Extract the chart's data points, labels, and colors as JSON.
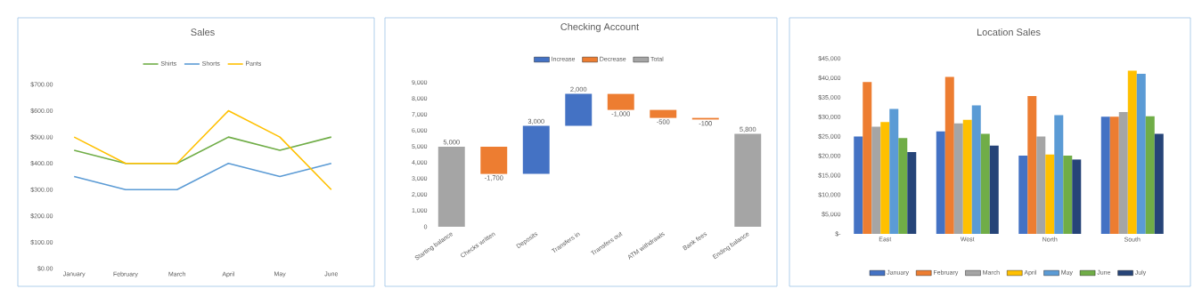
{
  "chart_data": [
    {
      "type": "line",
      "title": "Sales",
      "categories": [
        "January",
        "February",
        "March",
        "April",
        "May",
        "June"
      ],
      "series": [
        {
          "name": "Shirts",
          "color": "#70ad47",
          "values": [
            450,
            400,
            400,
            500,
            450,
            500
          ]
        },
        {
          "name": "Shorts",
          "color": "#5b9bd5",
          "values": [
            350,
            300,
            300,
            400,
            350,
            400
          ]
        },
        {
          "name": "Pants",
          "color": "#ffc000",
          "values": [
            500,
            400,
            400,
            600,
            500,
            300
          ]
        }
      ],
      "ylim": [
        0,
        700
      ],
      "yticks": [
        {
          "value": 0,
          "label": "$0.00"
        },
        {
          "value": 100,
          "label": "$100.00"
        },
        {
          "value": 200,
          "label": "$200.00"
        },
        {
          "value": 300,
          "label": "$300.00"
        },
        {
          "value": 400,
          "label": "$400.00"
        },
        {
          "value": 500,
          "label": "$500.00"
        },
        {
          "value": 600,
          "label": "$600.00"
        },
        {
          "value": 700,
          "label": "$700.00"
        }
      ],
      "legend": "top"
    },
    {
      "type": "bar",
      "title": "Checking Account",
      "categories": [
        "Starting balance",
        "Checks written",
        "Deposits",
        "Transfers in",
        "Transfers out",
        "ATM withdrawls",
        "Bank fees",
        "Ending balance"
      ],
      "series": [
        {
          "name": "Increase",
          "color": "#4472c4",
          "values": [
            null,
            null,
            3000,
            2000,
            null,
            null,
            null,
            null
          ],
          "value_labels": [
            null,
            null,
            "3,000",
            "2,000",
            null,
            null,
            null,
            null
          ],
          "base": [
            null,
            null,
            3300,
            6300,
            null,
            null,
            null,
            null
          ]
        },
        {
          "name": "Decrease",
          "color": "#ed7d31",
          "values": [
            null,
            -1700,
            null,
            null,
            -1000,
            -500,
            -100,
            null
          ],
          "value_labels": [
            null,
            "-1,700",
            null,
            null,
            "-1,000",
            "-500",
            "-100",
            null
          ],
          "base": [
            null,
            5000,
            null,
            null,
            8300,
            7300,
            6800,
            null
          ]
        },
        {
          "name": "Total",
          "color": "#a5a5a5",
          "values": [
            5000,
            null,
            null,
            null,
            null,
            null,
            null,
            5800
          ],
          "value_labels": [
            "5,000",
            null,
            null,
            null,
            null,
            null,
            null,
            "5,800"
          ],
          "base": [
            0,
            null,
            null,
            null,
            null,
            null,
            null,
            0
          ]
        }
      ],
      "ylim": [
        0,
        9000
      ],
      "yticks": [
        0,
        {
          "value": 1000,
          "label": "1,000"
        },
        {
          "value": 2000,
          "label": "2,000"
        },
        {
          "value": 3000,
          "label": "3,000"
        },
        {
          "value": 4000,
          "label": "4,000"
        },
        {
          "value": 5000,
          "label": "5,000"
        },
        {
          "value": 6000,
          "label": "6,000"
        },
        {
          "value": 7000,
          "label": "7,000"
        },
        {
          "value": 8000,
          "label": "8,000"
        },
        {
          "value": 9000,
          "label": "9,000"
        }
      ],
      "legend": "top"
    },
    {
      "type": "bar",
      "title": "Location Sales",
      "categories": [
        "East",
        "West",
        "North",
        "South"
      ],
      "series": [
        {
          "name": "January",
          "color": "#4472c4",
          "values": [
            25000,
            26300,
            20100,
            30100
          ]
        },
        {
          "name": "February",
          "color": "#ed7d31",
          "values": [
            39000,
            40300,
            35400,
            30100
          ]
        },
        {
          "name": "March",
          "color": "#a5a5a5",
          "values": [
            27500,
            28400,
            25000,
            31300
          ]
        },
        {
          "name": "April",
          "color": "#ffc000",
          "values": [
            28700,
            29300,
            20400,
            41900
          ]
        },
        {
          "name": "May",
          "color": "#5b9bd5",
          "values": [
            32100,
            33000,
            30500,
            41100
          ]
        },
        {
          "name": "June",
          "color": "#70ad47",
          "values": [
            24600,
            25700,
            20100,
            30200
          ]
        },
        {
          "name": "July",
          "color": "#264478",
          "values": [
            21000,
            22700,
            19100,
            25700
          ]
        }
      ],
      "ylim": [
        0,
        45000
      ],
      "yticks": [
        {
          "value": 0,
          "label": "$-"
        },
        {
          "value": 5000,
          "label": "$5,000"
        },
        {
          "value": 10000,
          "label": "$10,000"
        },
        {
          "value": 15000,
          "label": "$15,000"
        },
        {
          "value": 20000,
          "label": "$20,000"
        },
        {
          "value": 25000,
          "label": "$25,000"
        },
        {
          "value": 30000,
          "label": "$30,000"
        },
        {
          "value": 35000,
          "label": "$35,000"
        },
        {
          "value": 40000,
          "label": "$40,000"
        },
        {
          "value": 45000,
          "label": "$45,000"
        }
      ],
      "legend": "bottom"
    }
  ]
}
